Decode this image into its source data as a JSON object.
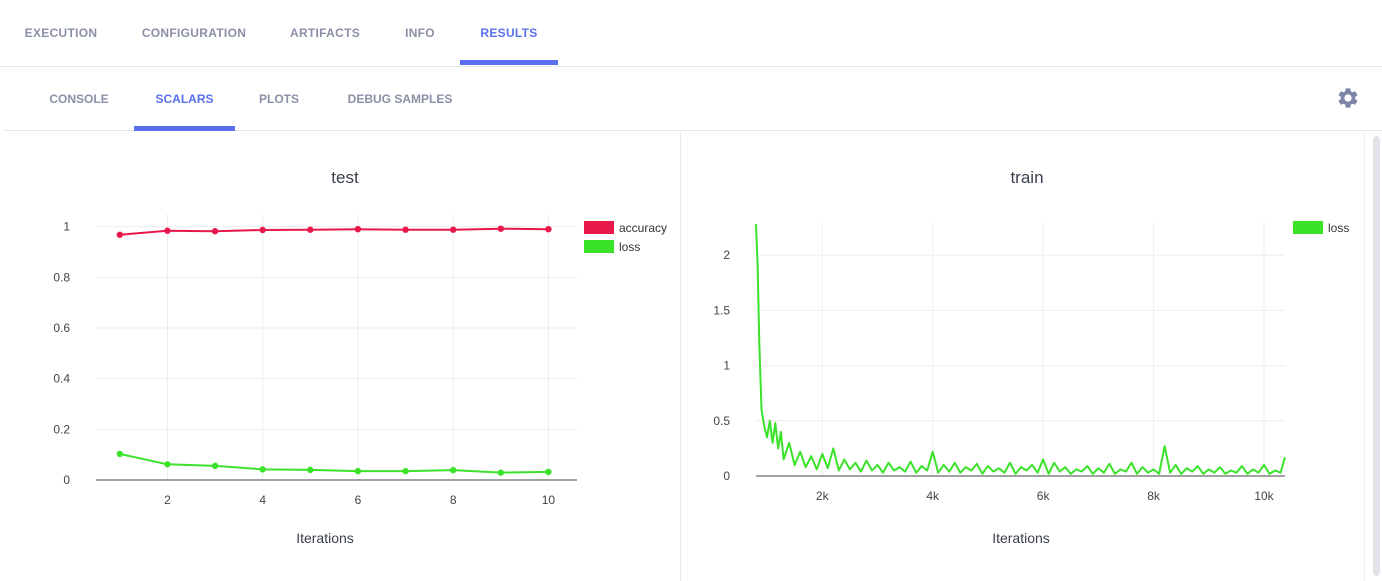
{
  "top_tabs": [
    {
      "label": "EXECUTION"
    },
    {
      "label": "CONFIGURATION"
    },
    {
      "label": "ARTIFACTS"
    },
    {
      "label": "INFO"
    },
    {
      "label": "RESULTS",
      "active": true
    }
  ],
  "sub_tabs": [
    {
      "label": "CONSOLE"
    },
    {
      "label": "SCALARS",
      "active": true
    },
    {
      "label": "PLOTS"
    },
    {
      "label": "DEBUG SAMPLES"
    }
  ],
  "settings_icon": "gear-icon",
  "colors": {
    "accent": "#5a6ff0",
    "accuracy": "#e8194a",
    "loss": "#3be22a"
  },
  "chart_data": [
    {
      "type": "line",
      "title": "test",
      "xlabel": "Iterations",
      "ylabel": "",
      "x": [
        1,
        2,
        3,
        4,
        5,
        6,
        7,
        8,
        9,
        10
      ],
      "xlim": [
        0.5,
        10.6
      ],
      "ylim": [
        0,
        1.05
      ],
      "xticks": [
        2,
        4,
        6,
        8,
        10
      ],
      "yticks": [
        0,
        0.2,
        0.4,
        0.6,
        0.8,
        1
      ],
      "ytick_labels": [
        "0",
        "0.2",
        "0.4",
        "0.6",
        "0.8",
        "1"
      ],
      "xtick_labels": [
        "2",
        "4",
        "6",
        "8",
        "10"
      ],
      "grid": true,
      "legend": "top-right",
      "series": [
        {
          "name": "accuracy",
          "color": "#e8194a",
          "markers": true,
          "values": [
            0.968,
            0.984,
            0.982,
            0.987,
            0.988,
            0.99,
            0.988,
            0.988,
            0.992,
            0.99
          ]
        },
        {
          "name": "loss",
          "color": "#3be22a",
          "markers": true,
          "values": [
            0.103,
            0.062,
            0.056,
            0.042,
            0.04,
            0.035,
            0.035,
            0.039,
            0.029,
            0.032
          ]
        }
      ]
    },
    {
      "type": "line",
      "title": "train",
      "xlabel": "Iterations",
      "ylabel": "",
      "xlim": [
        800,
        10380
      ],
      "ylim": [
        0,
        2.3
      ],
      "xticks": [
        2000,
        4000,
        6000,
        8000,
        10000
      ],
      "xtick_labels": [
        "2k",
        "4k",
        "6k",
        "8k",
        "10k"
      ],
      "yticks": [
        0,
        0.5,
        1,
        1.5,
        2
      ],
      "ytick_labels": [
        "0",
        "0.5",
        "1",
        "1.5",
        "2"
      ],
      "grid": true,
      "legend": "top-right",
      "series": [
        {
          "name": "loss",
          "color": "#3be22a",
          "markers": false,
          "x": [
            800,
            830,
            860,
            900,
            950,
            1000,
            1050,
            1100,
            1150,
            1200,
            1250,
            1300,
            1400,
            1500,
            1600,
            1700,
            1800,
            1900,
            2000,
            2100,
            2200,
            2300,
            2400,
            2500,
            2600,
            2700,
            2800,
            2900,
            3000,
            3100,
            3200,
            3300,
            3400,
            3500,
            3600,
            3700,
            3800,
            3900,
            4000,
            4100,
            4200,
            4300,
            4400,
            4500,
            4600,
            4700,
            4800,
            4900,
            5000,
            5100,
            5200,
            5300,
            5400,
            5500,
            5600,
            5700,
            5800,
            5900,
            6000,
            6100,
            6200,
            6300,
            6400,
            6500,
            6600,
            6700,
            6800,
            6900,
            7000,
            7100,
            7200,
            7300,
            7400,
            7500,
            7600,
            7700,
            7800,
            7900,
            8000,
            8100,
            8200,
            8300,
            8400,
            8500,
            8600,
            8700,
            8800,
            8900,
            9000,
            9100,
            9200,
            9300,
            9400,
            9500,
            9600,
            9700,
            9800,
            9900,
            10000,
            10100,
            10200,
            10300,
            10380
          ],
          "values": [
            2.28,
            1.9,
            1.2,
            0.6,
            0.45,
            0.35,
            0.5,
            0.3,
            0.48,
            0.25,
            0.4,
            0.15,
            0.3,
            0.1,
            0.22,
            0.08,
            0.18,
            0.06,
            0.2,
            0.07,
            0.25,
            0.05,
            0.15,
            0.06,
            0.12,
            0.04,
            0.14,
            0.05,
            0.1,
            0.03,
            0.12,
            0.05,
            0.08,
            0.04,
            0.13,
            0.03,
            0.09,
            0.05,
            0.22,
            0.03,
            0.1,
            0.04,
            0.12,
            0.03,
            0.08,
            0.05,
            0.11,
            0.02,
            0.09,
            0.04,
            0.07,
            0.03,
            0.12,
            0.02,
            0.08,
            0.05,
            0.1,
            0.03,
            0.15,
            0.02,
            0.12,
            0.04,
            0.08,
            0.02,
            0.06,
            0.04,
            0.09,
            0.02,
            0.07,
            0.03,
            0.11,
            0.02,
            0.06,
            0.04,
            0.12,
            0.02,
            0.08,
            0.03,
            0.06,
            0.02,
            0.27,
            0.03,
            0.1,
            0.02,
            0.07,
            0.04,
            0.09,
            0.02,
            0.06,
            0.03,
            0.08,
            0.02,
            0.05,
            0.03,
            0.09,
            0.02,
            0.06,
            0.03,
            0.1,
            0.02,
            0.05,
            0.03,
            0.17
          ]
        }
      ]
    }
  ]
}
